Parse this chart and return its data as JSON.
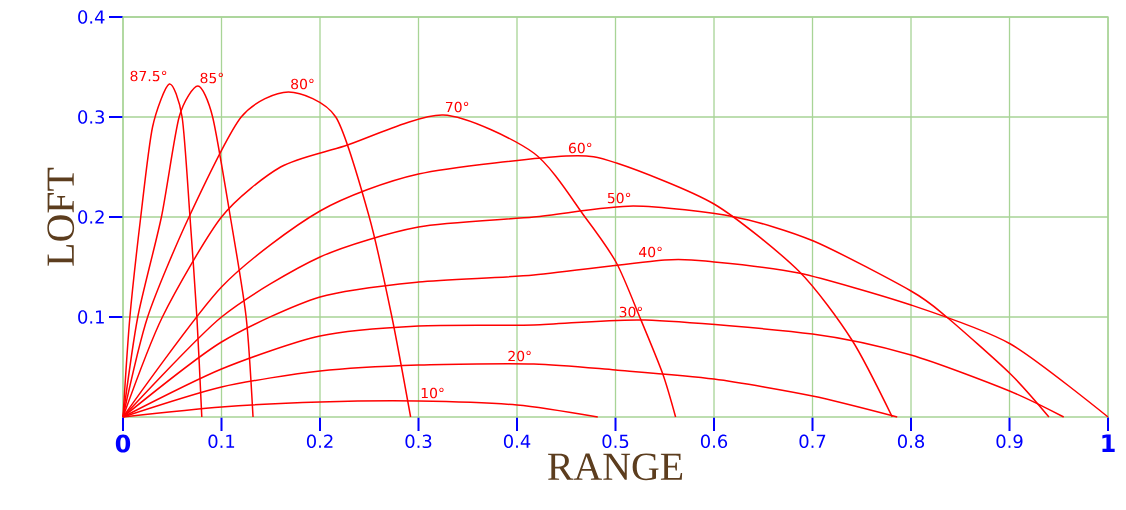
{
  "chart_data": {
    "type": "line",
    "xlabel": "RANGE",
    "ylabel": "LOFT",
    "xlim": [
      0,
      1
    ],
    "ylim": [
      0,
      0.4
    ],
    "xticks": [
      0,
      0.1,
      0.2,
      0.3,
      0.4,
      0.5,
      0.6,
      0.7,
      0.8,
      0.9,
      1
    ],
    "yticks": [
      0.1,
      0.2,
      0.3,
      0.4
    ],
    "grid": true,
    "series": [
      {
        "name": "87.5°",
        "color": "#ff0000",
        "x": [
          0,
          0.007,
          0.018,
          0.03,
          0.047,
          0.06,
          0.068,
          0.075,
          0.08
        ],
        "values": [
          0,
          0.1,
          0.2,
          0.29,
          0.333,
          0.3,
          0.2,
          0.1,
          0
        ]
      },
      {
        "name": "85°",
        "color": "#ff0000",
        "x": [
          0,
          0.015,
          0.039,
          0.057,
          0.076,
          0.091,
          0.109,
          0.125,
          0.132
        ],
        "values": [
          0,
          0.1,
          0.2,
          0.3,
          0.331,
          0.3,
          0.2,
          0.1,
          0
        ]
      },
      {
        "name": "80°",
        "color": "#ff0000",
        "x": [
          0,
          0.025,
          0.067,
          0.12,
          0.168,
          0.216,
          0.25,
          0.273,
          0.292
        ],
        "values": [
          0,
          0.1,
          0.2,
          0.3,
          0.325,
          0.3,
          0.2,
          0.1,
          0
        ]
      },
      {
        "name": "70°",
        "color": "#ff0000",
        "x": [
          0,
          0.04,
          0.1,
          0.16,
          0.225,
          0.325,
          0.417,
          0.469,
          0.501,
          0.525,
          0.548,
          0.561
        ],
        "values": [
          0,
          0.1,
          0.2,
          0.25,
          0.271,
          0.302,
          0.264,
          0.2,
          0.154,
          0.099,
          0.043,
          0
        ]
      },
      {
        "name": "60°",
        "color": "#ff0000",
        "x": [
          0,
          0.1,
          0.2,
          0.3,
          0.45,
          0.501,
          0.6,
          0.686,
          0.74,
          0.781
        ],
        "values": [
          0,
          0.13,
          0.206,
          0.243,
          0.261,
          0.254,
          0.213,
          0.146,
          0.077,
          0
        ]
      },
      {
        "name": "50°",
        "color": "#ff0000",
        "x": [
          0,
          0.1,
          0.2,
          0.3,
          0.417,
          0.518,
          0.621,
          0.701,
          0.8,
          0.835,
          0.901,
          0.94
        ],
        "values": [
          0,
          0.1,
          0.16,
          0.19,
          0.2,
          0.211,
          0.2,
          0.176,
          0.126,
          0.101,
          0.043,
          0
        ]
      },
      {
        "name": "40°",
        "color": "#ff0000",
        "x": [
          0,
          0.1,
          0.2,
          0.3,
          0.417,
          0.55,
          0.6,
          0.686,
          0.8,
          0.901,
          1
        ],
        "values": [
          0,
          0.075,
          0.12,
          0.135,
          0.142,
          0.157,
          0.155,
          0.144,
          0.112,
          0.073,
          0
        ]
      },
      {
        "name": "30°",
        "color": "#ff0000",
        "x": [
          0,
          0.1,
          0.2,
          0.3,
          0.417,
          0.53,
          0.7,
          0.8,
          0.9,
          0.955
        ],
        "values": [
          0,
          0.048,
          0.081,
          0.091,
          0.092,
          0.097,
          0.083,
          0.062,
          0.026,
          0
        ]
      },
      {
        "name": "20°",
        "color": "#ff0000",
        "x": [
          0,
          0.1,
          0.2,
          0.3,
          0.417,
          0.5,
          0.6,
          0.7,
          0.786
        ],
        "values": [
          0,
          0.03,
          0.046,
          0.052,
          0.053,
          0.047,
          0.038,
          0.021,
          0
        ]
      },
      {
        "name": "10°",
        "color": "#ff0000",
        "x": [
          0,
          0.1,
          0.2,
          0.3,
          0.4,
          0.482
        ],
        "values": [
          0,
          0.01,
          0.015,
          0.016,
          0.012,
          0
        ]
      }
    ]
  }
}
